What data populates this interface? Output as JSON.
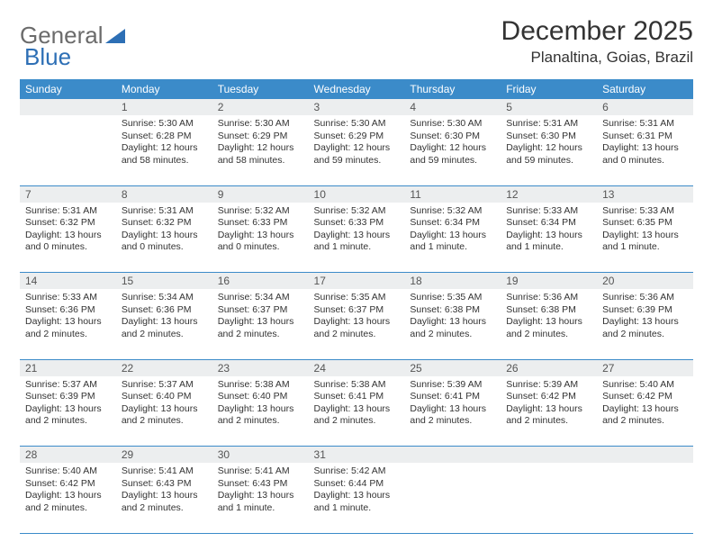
{
  "logo": {
    "text1": "General",
    "text2": "Blue"
  },
  "header": {
    "month": "December 2025",
    "location": "Planaltina, Goias, Brazil"
  },
  "colors": {
    "header_bg": "#3b8bc9",
    "header_text": "#ffffff",
    "daynum_bg": "#eceeef",
    "rule": "#3b8bc9",
    "logo_gray": "#6b6b6b",
    "logo_blue": "#2d6fb5"
  },
  "dayNames": [
    "Sunday",
    "Monday",
    "Tuesday",
    "Wednesday",
    "Thursday",
    "Friday",
    "Saturday"
  ],
  "weeks": [
    [
      {
        "n": "",
        "sunrise": "",
        "sunset": "",
        "daylight": ""
      },
      {
        "n": "1",
        "sunrise": "Sunrise: 5:30 AM",
        "sunset": "Sunset: 6:28 PM",
        "daylight": "Daylight: 12 hours and 58 minutes."
      },
      {
        "n": "2",
        "sunrise": "Sunrise: 5:30 AM",
        "sunset": "Sunset: 6:29 PM",
        "daylight": "Daylight: 12 hours and 58 minutes."
      },
      {
        "n": "3",
        "sunrise": "Sunrise: 5:30 AM",
        "sunset": "Sunset: 6:29 PM",
        "daylight": "Daylight: 12 hours and 59 minutes."
      },
      {
        "n": "4",
        "sunrise": "Sunrise: 5:30 AM",
        "sunset": "Sunset: 6:30 PM",
        "daylight": "Daylight: 12 hours and 59 minutes."
      },
      {
        "n": "5",
        "sunrise": "Sunrise: 5:31 AM",
        "sunset": "Sunset: 6:30 PM",
        "daylight": "Daylight: 12 hours and 59 minutes."
      },
      {
        "n": "6",
        "sunrise": "Sunrise: 5:31 AM",
        "sunset": "Sunset: 6:31 PM",
        "daylight": "Daylight: 13 hours and 0 minutes."
      }
    ],
    [
      {
        "n": "7",
        "sunrise": "Sunrise: 5:31 AM",
        "sunset": "Sunset: 6:32 PM",
        "daylight": "Daylight: 13 hours and 0 minutes."
      },
      {
        "n": "8",
        "sunrise": "Sunrise: 5:31 AM",
        "sunset": "Sunset: 6:32 PM",
        "daylight": "Daylight: 13 hours and 0 minutes."
      },
      {
        "n": "9",
        "sunrise": "Sunrise: 5:32 AM",
        "sunset": "Sunset: 6:33 PM",
        "daylight": "Daylight: 13 hours and 0 minutes."
      },
      {
        "n": "10",
        "sunrise": "Sunrise: 5:32 AM",
        "sunset": "Sunset: 6:33 PM",
        "daylight": "Daylight: 13 hours and 1 minute."
      },
      {
        "n": "11",
        "sunrise": "Sunrise: 5:32 AM",
        "sunset": "Sunset: 6:34 PM",
        "daylight": "Daylight: 13 hours and 1 minute."
      },
      {
        "n": "12",
        "sunrise": "Sunrise: 5:33 AM",
        "sunset": "Sunset: 6:34 PM",
        "daylight": "Daylight: 13 hours and 1 minute."
      },
      {
        "n": "13",
        "sunrise": "Sunrise: 5:33 AM",
        "sunset": "Sunset: 6:35 PM",
        "daylight": "Daylight: 13 hours and 1 minute."
      }
    ],
    [
      {
        "n": "14",
        "sunrise": "Sunrise: 5:33 AM",
        "sunset": "Sunset: 6:36 PM",
        "daylight": "Daylight: 13 hours and 2 minutes."
      },
      {
        "n": "15",
        "sunrise": "Sunrise: 5:34 AM",
        "sunset": "Sunset: 6:36 PM",
        "daylight": "Daylight: 13 hours and 2 minutes."
      },
      {
        "n": "16",
        "sunrise": "Sunrise: 5:34 AM",
        "sunset": "Sunset: 6:37 PM",
        "daylight": "Daylight: 13 hours and 2 minutes."
      },
      {
        "n": "17",
        "sunrise": "Sunrise: 5:35 AM",
        "sunset": "Sunset: 6:37 PM",
        "daylight": "Daylight: 13 hours and 2 minutes."
      },
      {
        "n": "18",
        "sunrise": "Sunrise: 5:35 AM",
        "sunset": "Sunset: 6:38 PM",
        "daylight": "Daylight: 13 hours and 2 minutes."
      },
      {
        "n": "19",
        "sunrise": "Sunrise: 5:36 AM",
        "sunset": "Sunset: 6:38 PM",
        "daylight": "Daylight: 13 hours and 2 minutes."
      },
      {
        "n": "20",
        "sunrise": "Sunrise: 5:36 AM",
        "sunset": "Sunset: 6:39 PM",
        "daylight": "Daylight: 13 hours and 2 minutes."
      }
    ],
    [
      {
        "n": "21",
        "sunrise": "Sunrise: 5:37 AM",
        "sunset": "Sunset: 6:39 PM",
        "daylight": "Daylight: 13 hours and 2 minutes."
      },
      {
        "n": "22",
        "sunrise": "Sunrise: 5:37 AM",
        "sunset": "Sunset: 6:40 PM",
        "daylight": "Daylight: 13 hours and 2 minutes."
      },
      {
        "n": "23",
        "sunrise": "Sunrise: 5:38 AM",
        "sunset": "Sunset: 6:40 PM",
        "daylight": "Daylight: 13 hours and 2 minutes."
      },
      {
        "n": "24",
        "sunrise": "Sunrise: 5:38 AM",
        "sunset": "Sunset: 6:41 PM",
        "daylight": "Daylight: 13 hours and 2 minutes."
      },
      {
        "n": "25",
        "sunrise": "Sunrise: 5:39 AM",
        "sunset": "Sunset: 6:41 PM",
        "daylight": "Daylight: 13 hours and 2 minutes."
      },
      {
        "n": "26",
        "sunrise": "Sunrise: 5:39 AM",
        "sunset": "Sunset: 6:42 PM",
        "daylight": "Daylight: 13 hours and 2 minutes."
      },
      {
        "n": "27",
        "sunrise": "Sunrise: 5:40 AM",
        "sunset": "Sunset: 6:42 PM",
        "daylight": "Daylight: 13 hours and 2 minutes."
      }
    ],
    [
      {
        "n": "28",
        "sunrise": "Sunrise: 5:40 AM",
        "sunset": "Sunset: 6:42 PM",
        "daylight": "Daylight: 13 hours and 2 minutes."
      },
      {
        "n": "29",
        "sunrise": "Sunrise: 5:41 AM",
        "sunset": "Sunset: 6:43 PM",
        "daylight": "Daylight: 13 hours and 2 minutes."
      },
      {
        "n": "30",
        "sunrise": "Sunrise: 5:41 AM",
        "sunset": "Sunset: 6:43 PM",
        "daylight": "Daylight: 13 hours and 1 minute."
      },
      {
        "n": "31",
        "sunrise": "Sunrise: 5:42 AM",
        "sunset": "Sunset: 6:44 PM",
        "daylight": "Daylight: 13 hours and 1 minute."
      },
      {
        "n": "",
        "sunrise": "",
        "sunset": "",
        "daylight": ""
      },
      {
        "n": "",
        "sunrise": "",
        "sunset": "",
        "daylight": ""
      },
      {
        "n": "",
        "sunrise": "",
        "sunset": "",
        "daylight": ""
      }
    ]
  ]
}
